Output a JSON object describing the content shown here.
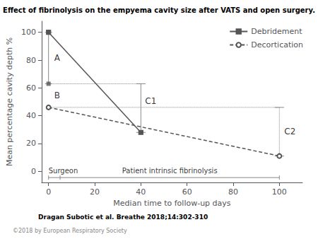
{
  "chart_data": {
    "type": "line",
    "title": "Effect of fibrinolysis on the empyema cavity size after VATS and open surgery.",
    "xlabel": "Median time to follow-up days",
    "ylabel": "Mean percentage cavity depth %",
    "xlim": [
      -3,
      110
    ],
    "ylim": [
      -8,
      108
    ],
    "xticks": [
      0,
      20,
      40,
      60,
      80,
      100
    ],
    "yticks": [
      0,
      20,
      40,
      60,
      80,
      100
    ],
    "grid": false,
    "legend": "upper right",
    "series": [
      {
        "name": "Debridement",
        "color": "#555555",
        "x": [
          0,
          40
        ],
        "values": [
          100,
          28
        ],
        "line_style": "solid",
        "marker": "square"
      },
      {
        "name": "Decortication",
        "color": "#555555",
        "x": [
          0,
          100
        ],
        "values": [
          46,
          11
        ],
        "line_style": "dashed",
        "marker": "open circle"
      }
    ],
    "points": [
      {
        "x": 0,
        "y": 63,
        "marker": "square"
      }
    ],
    "annotations": [
      "A",
      "B",
      "C1",
      "C2"
    ],
    "brackets": [
      {
        "label": "Surgeon",
        "x": [
          0,
          5
        ]
      },
      {
        "label": "Patient intrinsic fibrinolysis",
        "x": [
          5,
          100
        ]
      }
    ],
    "footnote": "Dragan Subotic et al. Breathe 2018;14:302-310",
    "copyright": "©2018 by European Respiratory Society"
  }
}
